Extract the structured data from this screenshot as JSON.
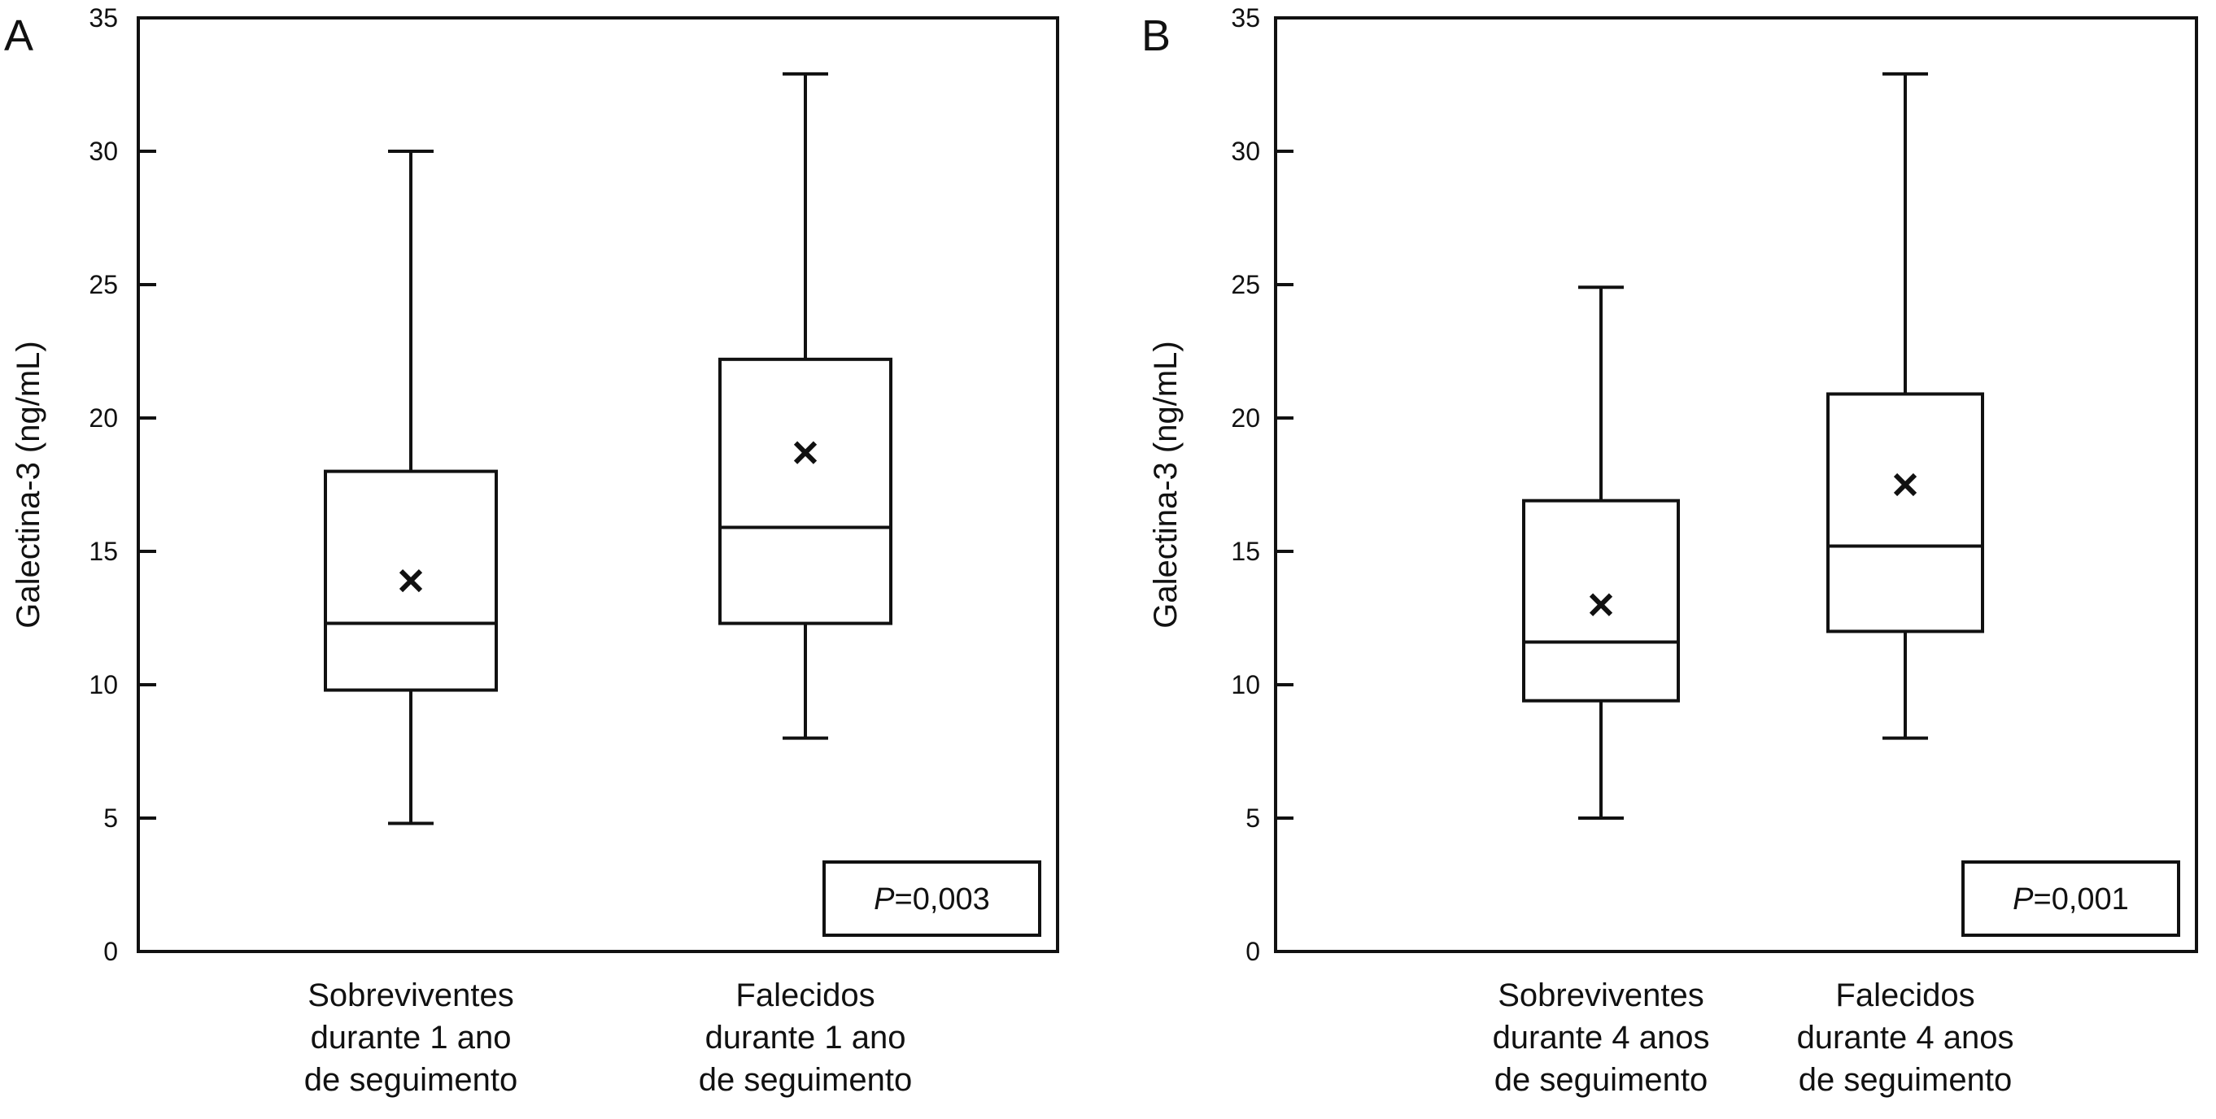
{
  "chart_data": [
    {
      "type": "boxplot",
      "panel_label": "A",
      "ylabel": "Galectina-3 (ng/mL)",
      "ylim": [
        0,
        35
      ],
      "yticks": [
        0,
        5,
        10,
        15,
        20,
        25,
        30,
        35
      ],
      "grid": false,
      "categories": [
        [
          "Sobreviventes",
          "durante 1 ano",
          "de seguimento"
        ],
        [
          "Falecidos",
          "durante 1 ano",
          "de seguimento"
        ]
      ],
      "boxes": [
        {
          "min": 4.8,
          "q1": 9.8,
          "median": 12.3,
          "q3": 18.0,
          "max": 30.0,
          "mean": 13.9
        },
        {
          "min": 8.0,
          "q1": 12.3,
          "median": 15.9,
          "q3": 22.2,
          "max": 32.9,
          "mean": 18.7
        }
      ],
      "annotation": {
        "italic": "P",
        "rest": "=0,003"
      }
    },
    {
      "type": "boxplot",
      "panel_label": "B",
      "ylabel": "Galectina-3 (ng/mL)",
      "ylim": [
        0,
        35
      ],
      "yticks": [
        0,
        5,
        10,
        15,
        20,
        25,
        30,
        35
      ],
      "grid": false,
      "categories": [
        [
          "Sobreviventes",
          "durante 4 anos",
          "de seguimento"
        ],
        [
          "Falecidos",
          "durante 4 anos",
          "de seguimento"
        ]
      ],
      "boxes": [
        {
          "min": 5.0,
          "q1": 9.4,
          "median": 11.6,
          "q3": 16.9,
          "max": 24.9,
          "mean": 13.0
        },
        {
          "min": 8.0,
          "q1": 12.0,
          "median": 15.2,
          "q3": 20.9,
          "max": 32.9,
          "mean": 17.5
        }
      ],
      "annotation": {
        "italic": "P",
        "rest": "=0,001"
      }
    }
  ]
}
